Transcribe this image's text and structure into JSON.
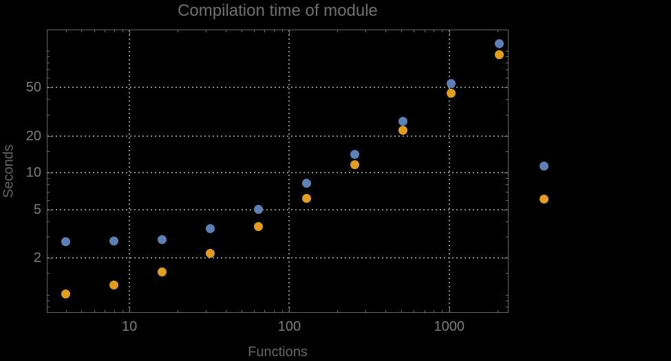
{
  "title": "Compilation time of module",
  "x_axis_label": "Functions",
  "y_axis_label": "Seconds",
  "colors": {
    "background": "#000000",
    "frame": "#666666",
    "gridline": "#8a8a8a",
    "tick": "#6f6f6f",
    "tick_label": "#7d7d7d",
    "series_blue": "#5e81b5",
    "series_orange": "#e19c24"
  },
  "chart_data": {
    "type": "scatter",
    "x_scale": "log",
    "y_scale": "log",
    "title": "Compilation time of module",
    "xlabel": "Functions",
    "ylabel": "Seconds",
    "xlim": [
      3.04,
      2350
    ],
    "ylim": [
      0.711,
      148.9
    ],
    "grid": true,
    "legend_position": "right-outside",
    "x": [
      4,
      8,
      16,
      32,
      64,
      128,
      256,
      512,
      1024,
      2048
    ],
    "series": [
      {
        "name": "series-1-blue",
        "color": "#5e81b5",
        "values": [
          2.74,
          2.76,
          2.84,
          3.5,
          5.0,
          8.2,
          14.2,
          26.4,
          53.6,
          114
        ]
      },
      {
        "name": "series-2-orange",
        "color": "#e19c24",
        "values": [
          1.01,
          1.21,
          1.53,
          2.18,
          3.6,
          6.2,
          11.6,
          22.2,
          44.6,
          93
        ]
      }
    ],
    "x_major_ticks": [
      10,
      100,
      1000
    ],
    "x_major_labels": [
      "10",
      "100",
      "1000"
    ],
    "x_minor_ticks": [
      4,
      5,
      6,
      7,
      8,
      9,
      20,
      30,
      40,
      50,
      60,
      70,
      80,
      90,
      200,
      300,
      400,
      500,
      600,
      700,
      800,
      900,
      2000
    ],
    "y_major_ticks": [
      2,
      5,
      10,
      20,
      50
    ],
    "y_major_labels": [
      "2",
      "5",
      "10",
      "20",
      "50"
    ],
    "y_minor_ticks": [
      0.8,
      0.9,
      1,
      1.5,
      3,
      4,
      6,
      7,
      8,
      9,
      15,
      30,
      40,
      60,
      70,
      80,
      90,
      100
    ]
  },
  "legend": {
    "items": [
      {
        "marker_color": "#5e81b5",
        "label": ""
      },
      {
        "marker_color": "#e19c24",
        "label": ""
      }
    ]
  }
}
